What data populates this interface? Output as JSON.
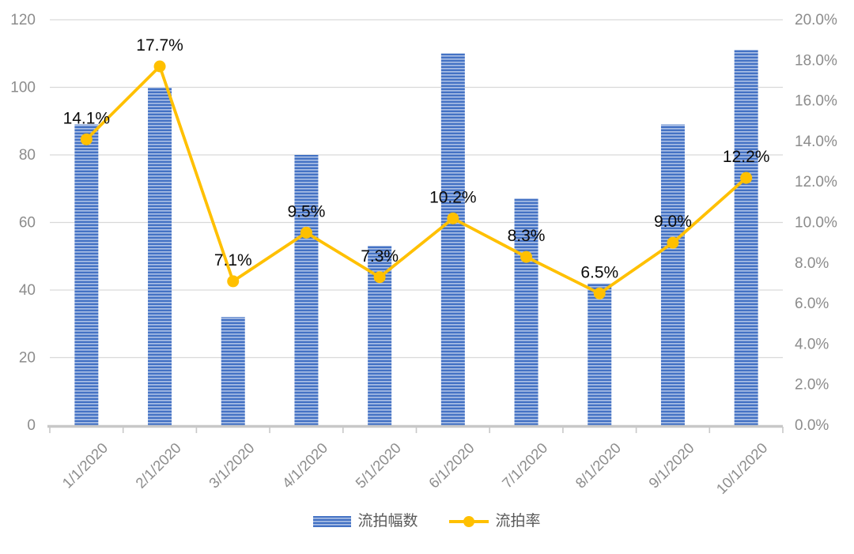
{
  "chart_data": {
    "type": "bar",
    "subtype": "combo-bar-line",
    "title": "",
    "categories": [
      "1/1/2020",
      "2/1/2020",
      "3/1/2020",
      "4/1/2020",
      "5/1/2020",
      "6/1/2020",
      "7/1/2020",
      "8/1/2020",
      "9/1/2020",
      "10/1/2020"
    ],
    "series": [
      {
        "name": "流拍幅数",
        "type": "bar",
        "axis": "left",
        "values": [
          89,
          100,
          32,
          80,
          53,
          110,
          67,
          42,
          89,
          111
        ]
      },
      {
        "name": "流拍率",
        "type": "line",
        "axis": "right",
        "values": [
          14.1,
          17.7,
          7.1,
          9.5,
          7.3,
          10.2,
          8.3,
          6.5,
          9.0,
          12.2
        ],
        "point_labels": [
          "14.1%",
          "17.7%",
          "7.1%",
          "9.5%",
          "7.3%",
          "10.2%",
          "8.3%",
          "6.5%",
          "9.0%",
          "12.2%"
        ]
      }
    ],
    "left_axis": {
      "min": 0,
      "max": 120,
      "step": 20,
      "ticks": [
        "0",
        "20",
        "40",
        "60",
        "80",
        "100",
        "120"
      ]
    },
    "right_axis": {
      "min": 0,
      "max": 20,
      "step": 2,
      "ticks": [
        "0.0%",
        "2.0%",
        "4.0%",
        "6.0%",
        "8.0%",
        "10.0%",
        "12.0%",
        "14.0%",
        "16.0%",
        "18.0%",
        "20.0%"
      ]
    },
    "grid": true,
    "legend_position": "bottom",
    "colors": {
      "bar_main": "#4472C4",
      "bar_stripe_mid": "#8FA9DC",
      "bar_stripe_light": "#DDE6F6",
      "line": "#FFC000",
      "axis_text": "#8C8C8C",
      "data_label": "#0A0A0A",
      "gridline": "#D9D9D9",
      "axis_line": "#C8C8C8",
      "legend_text": "#595959"
    }
  }
}
